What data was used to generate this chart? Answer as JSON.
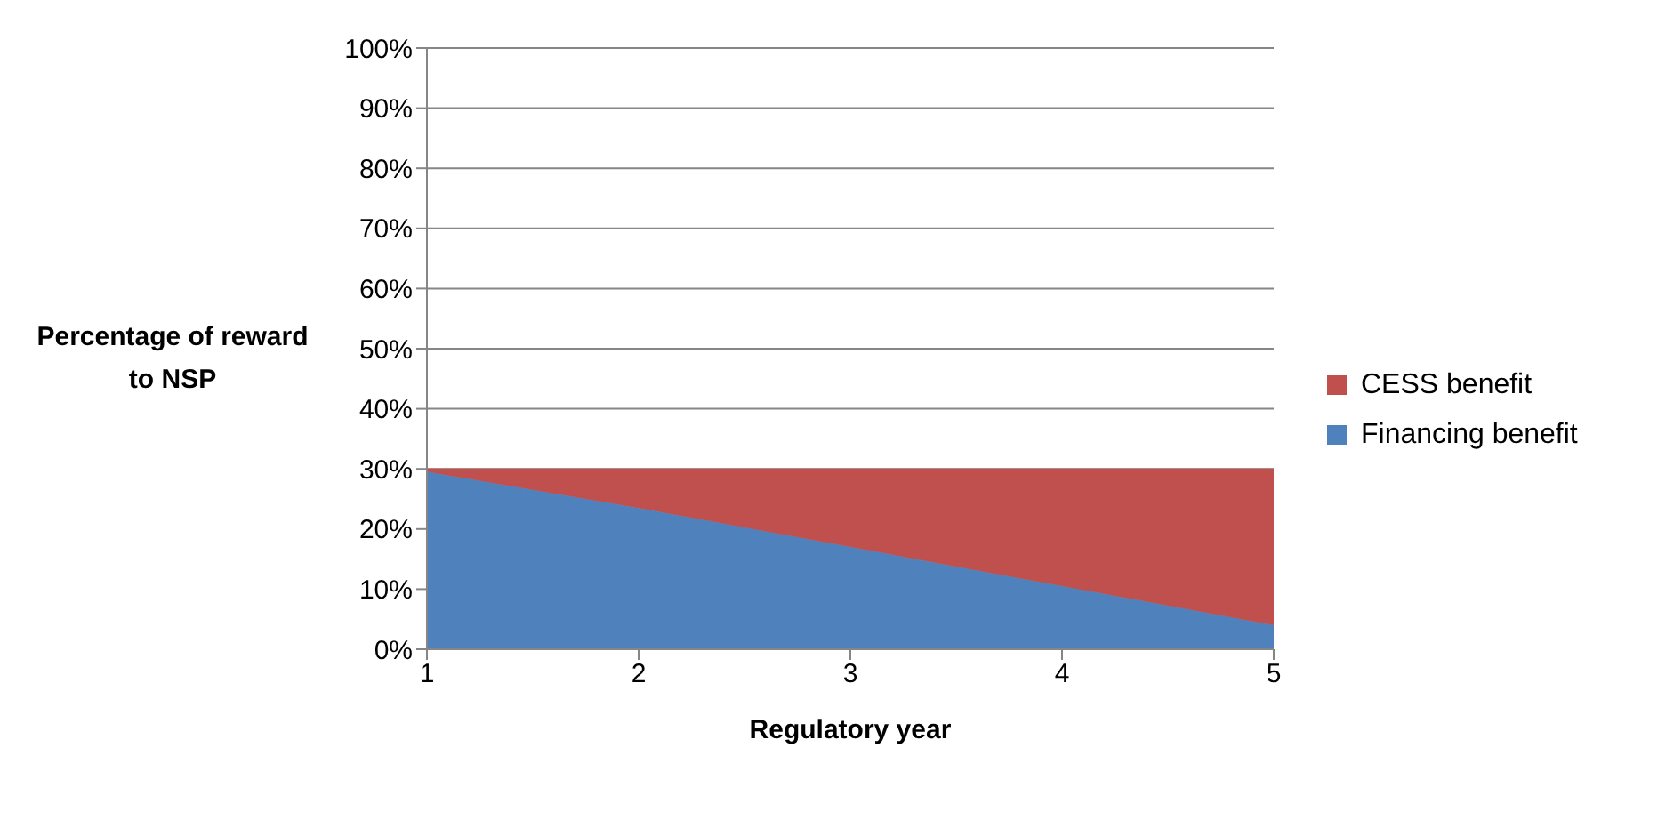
{
  "chart_data": {
    "type": "area",
    "stacked": true,
    "xlabel": "Regulatory year",
    "ylabel": "Percentage of reward to NSP",
    "x": [
      1,
      2,
      3,
      4,
      5
    ],
    "xlim": [
      1,
      5
    ],
    "xticks": [
      1,
      2,
      3,
      4,
      5
    ],
    "ylim": [
      0,
      100
    ],
    "yticks": [
      {
        "value": 0,
        "label": "0%"
      },
      {
        "value": 10,
        "label": "10%"
      },
      {
        "value": 20,
        "label": "20%"
      },
      {
        "value": 30,
        "label": "30%"
      },
      {
        "value": 40,
        "label": "40%"
      },
      {
        "value": 50,
        "label": "50%"
      },
      {
        "value": 60,
        "label": "60%"
      },
      {
        "value": 70,
        "label": "70%"
      },
      {
        "value": 80,
        "label": "80%"
      },
      {
        "value": 90,
        "label": "90%"
      },
      {
        "value": 100,
        "label": "100%"
      }
    ],
    "grid": "y",
    "legend": "right",
    "series": [
      {
        "name": "Financing benefit",
        "color": "#4f81bd",
        "values": [
          29.5,
          23.5,
          17,
          10.5,
          4
        ]
      },
      {
        "name": "CESS benefit",
        "color": "#c0504d",
        "values": [
          0.5,
          6.5,
          13,
          19.5,
          26
        ]
      }
    ]
  }
}
